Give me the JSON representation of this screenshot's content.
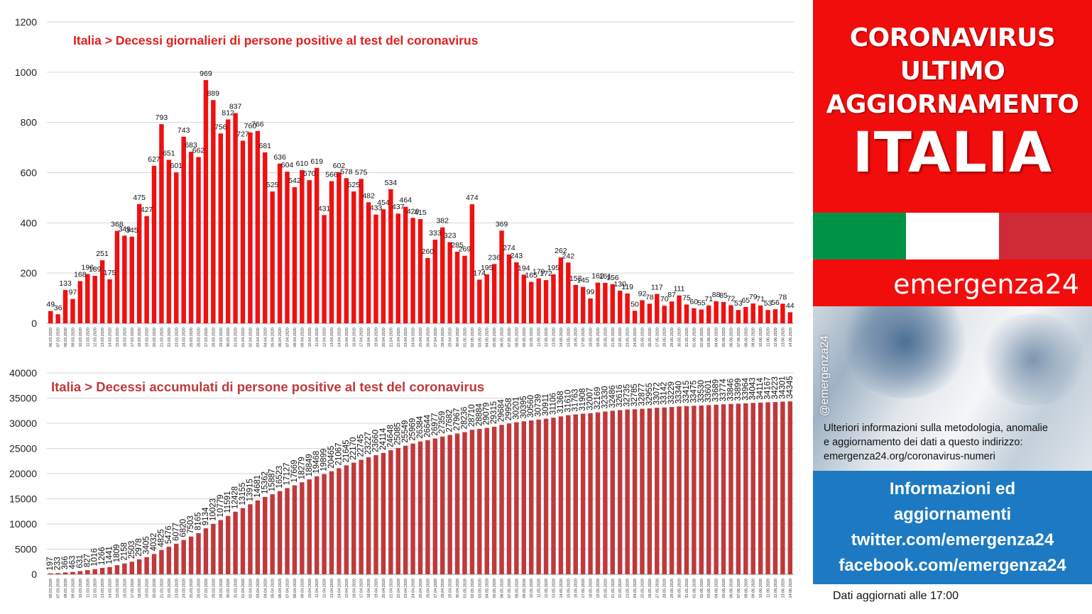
{
  "header": {
    "line1": "CORONAVIRUS",
    "line2": "ULTIMO",
    "line3": "AGGIORNAMENTO",
    "line4": "ITALIA"
  },
  "flag_colors": [
    "#009246",
    "#ffffff",
    "#ce2b37"
  ],
  "brand": "emergenza24",
  "photo": {
    "handle": "@emergenza24",
    "note_line1": "Ulteriori informazioni sulla metodologia, anomalie",
    "note_line2": "e aggiornamento dei dati a questo indirizzo:",
    "note_line3": "emergenza24.org/coronavirus-numeri"
  },
  "info": {
    "line1": "Informazioni ed",
    "line2": "aggiornamenti",
    "line3": "twitter.com/emergenza24",
    "line4": "facebook.com/emergenza24"
  },
  "updated": "Dati aggiornati alle 17:00",
  "chart_data": [
    {
      "type": "bar",
      "title": "Italia > Decessi giornalieri di persone positive al test del coronavirus",
      "title_color": "#e02020",
      "bar_color": "#ee1111",
      "ylim": [
        0,
        1200
      ],
      "yticks": [
        0,
        200,
        400,
        600,
        800,
        1000,
        1200
      ],
      "grid": true,
      "categories": [
        "06.03.2020",
        "07.03.2020",
        "08.03.2020",
        "09.03.2020",
        "10.03.2020",
        "11.03.2020",
        "12.03.2020",
        "13.03.2020",
        "14.03.2020",
        "15.03.2020",
        "16.03.2020",
        "17.03.2020",
        "18.03.2020",
        "19.03.2020",
        "20.03.2020",
        "21.03.2020",
        "22.03.2020",
        "23.03.2020",
        "24.03.2020",
        "25.03.2020",
        "26.03.2020",
        "27.03.2020",
        "28.03.2020",
        "29.03.2020",
        "30.03.2020",
        "31.03.2020",
        "01.04.2020",
        "02.04.2020",
        "03.04.2020",
        "04.04.2020",
        "05.04.2020",
        "06.04.2020",
        "07.04.2020",
        "08.04.2020",
        "09.04.2020",
        "10.04.2020",
        "11.04.2020",
        "12.04.2020",
        "13.04.2020",
        "14.04.2020",
        "15.04.2020",
        "16.04.2020",
        "17.04.2020",
        "18.04.2020",
        "19.04.2020",
        "20.04.2020",
        "21.04.2020",
        "22.04.2020",
        "23.04.2020",
        "24.04.2020",
        "25.04.2020",
        "26.04.2020",
        "27.04.2020",
        "28.04.2020",
        "29.04.2020",
        "30.04.2020",
        "01.05.2020",
        "02.05.2020",
        "03.05.2020",
        "04.05.2020",
        "05.05.2020",
        "06.05.2020",
        "07.05.2020",
        "08.05.2020",
        "09.05.2020",
        "10.05.2020",
        "11.05.2020",
        "12.05.2020",
        "13.05.2020",
        "14.05.2020",
        "15.05.2020",
        "16.05.2020",
        "17.05.2020",
        "18.05.2020",
        "19.05.2020",
        "20.05.2020",
        "21.05.2020",
        "22.05.2020",
        "23.05.2020",
        "24.05.2020",
        "25.05.2020",
        "26.05.2020",
        "27.05.2020",
        "28.05.2020",
        "29.05.2020",
        "30.05.2020",
        "31.05.2020",
        "01.06.2020",
        "02.06.2020",
        "03.06.2020",
        "04.06.2020",
        "05.06.2020",
        "06.06.2020",
        "07.06.2020",
        "08.06.2020",
        "09.06.2020",
        "10.06.2020",
        "11.06.2020",
        "12.06.2020",
        "13.06.2020",
        "14.06.2020"
      ],
      "values": [
        49,
        36,
        133,
        97,
        168,
        196,
        189,
        251,
        175,
        368,
        349,
        345,
        475,
        427,
        627,
        793,
        651,
        601,
        743,
        683,
        662,
        969,
        889,
        756,
        812,
        837,
        727,
        760,
        766,
        681,
        525,
        636,
        604,
        542,
        610,
        570,
        619,
        431,
        566,
        602,
        578,
        525,
        575,
        482,
        433,
        454,
        534,
        437,
        464,
        420,
        415,
        260,
        333,
        382,
        323,
        285,
        269,
        474,
        174,
        195,
        236,
        369,
        274,
        243,
        194,
        165,
        179,
        172,
        195,
        262,
        242,
        153,
        145,
        99,
        162,
        161,
        156,
        130,
        119,
        50,
        92,
        78,
        117,
        70,
        87,
        111,
        75,
        60,
        55,
        71,
        88,
        85,
        72,
        53,
        65,
        79,
        71,
        53,
        56,
        78,
        44
      ]
    },
    {
      "type": "bar",
      "title": "Italia > Decessi accumulati di persone positive al test del coronavirus",
      "title_color": "#c0393b",
      "bar_color": "#c0393b",
      "ylim": [
        0,
        40000
      ],
      "yticks": [
        0,
        5000,
        10000,
        15000,
        20000,
        25000,
        30000,
        35000,
        40000
      ],
      "grid": true,
      "categories": [
        "06.03.2020",
        "07.03.2020",
        "08.03.2020",
        "09.03.2020",
        "10.03.2020",
        "11.03.2020",
        "12.03.2020",
        "13.03.2020",
        "14.03.2020",
        "15.03.2020",
        "16.03.2020",
        "17.03.2020",
        "18.03.2020",
        "19.03.2020",
        "20.03.2020",
        "21.03.2020",
        "22.03.2020",
        "23.03.2020",
        "24.03.2020",
        "25.03.2020",
        "26.03.2020",
        "27.03.2020",
        "28.03.2020",
        "29.03.2020",
        "30.03.2020",
        "31.03.2020",
        "01.04.2020",
        "02.04.2020",
        "03.04.2020",
        "04.04.2020",
        "05.04.2020",
        "06.04.2020",
        "07.04.2020",
        "08.04.2020",
        "09.04.2020",
        "10.04.2020",
        "11.04.2020",
        "12.04.2020",
        "13.04.2020",
        "14.04.2020",
        "15.04.2020",
        "16.04.2020",
        "17.04.2020",
        "18.04.2020",
        "19.04.2020",
        "20.04.2020",
        "21.04.2020",
        "22.04.2020",
        "23.04.2020",
        "24.04.2020",
        "25.04.2020",
        "26.04.2020",
        "27.04.2020",
        "28.04.2020",
        "29.04.2020",
        "30.04.2020",
        "01.05.2020",
        "02.05.2020",
        "03.05.2020",
        "04.05.2020",
        "05.05.2020",
        "06.05.2020",
        "07.05.2020",
        "08.05.2020",
        "09.05.2020",
        "10.05.2020",
        "11.05.2020",
        "12.05.2020",
        "13.05.2020",
        "14.05.2020",
        "15.05.2020",
        "16.05.2020",
        "17.05.2020",
        "18.05.2020",
        "19.05.2020",
        "20.05.2020",
        "21.05.2020",
        "22.05.2020",
        "23.05.2020",
        "24.05.2020",
        "25.05.2020",
        "26.05.2020",
        "27.05.2020",
        "28.05.2020",
        "29.05.2020",
        "30.05.2020",
        "31.05.2020",
        "01.06.2020",
        "02.06.2020",
        "03.06.2020",
        "04.06.2020",
        "05.06.2020",
        "06.06.2020",
        "07.06.2020",
        "08.06.2020",
        "09.06.2020",
        "10.06.2020",
        "11.06.2020",
        "12.06.2020",
        "13.06.2020",
        "14.06.2020"
      ],
      "values": [
        197,
        233,
        366,
        463,
        631,
        827,
        1016,
        1266,
        1441,
        1809,
        2158,
        2503,
        2978,
        3405,
        4032,
        4825,
        5476,
        6077,
        6820,
        7503,
        8165,
        9134,
        10023,
        10779,
        11591,
        12428,
        13155,
        13915,
        14681,
        15362,
        15887,
        16523,
        17127,
        17669,
        18279,
        18849,
        19468,
        19899,
        20465,
        21067,
        21645,
        22170,
        22745,
        23227,
        23660,
        24114,
        24648,
        25085,
        25549,
        25969,
        26384,
        26644,
        26977,
        27359,
        27682,
        27967,
        28236,
        28710,
        28884,
        29079,
        29315,
        29684,
        29958,
        30201,
        30395,
        30560,
        30739,
        30911,
        31106,
        31368,
        31610,
        31763,
        31908,
        32007,
        32169,
        32330,
        32486,
        32616,
        32735,
        32785,
        32877,
        32955,
        33072,
        33142,
        33229,
        33340,
        33415,
        33475,
        33530,
        33601,
        33689,
        33774,
        33846,
        33899,
        33964,
        34043,
        34114,
        34167,
        34223,
        34301,
        34345
      ]
    }
  ]
}
